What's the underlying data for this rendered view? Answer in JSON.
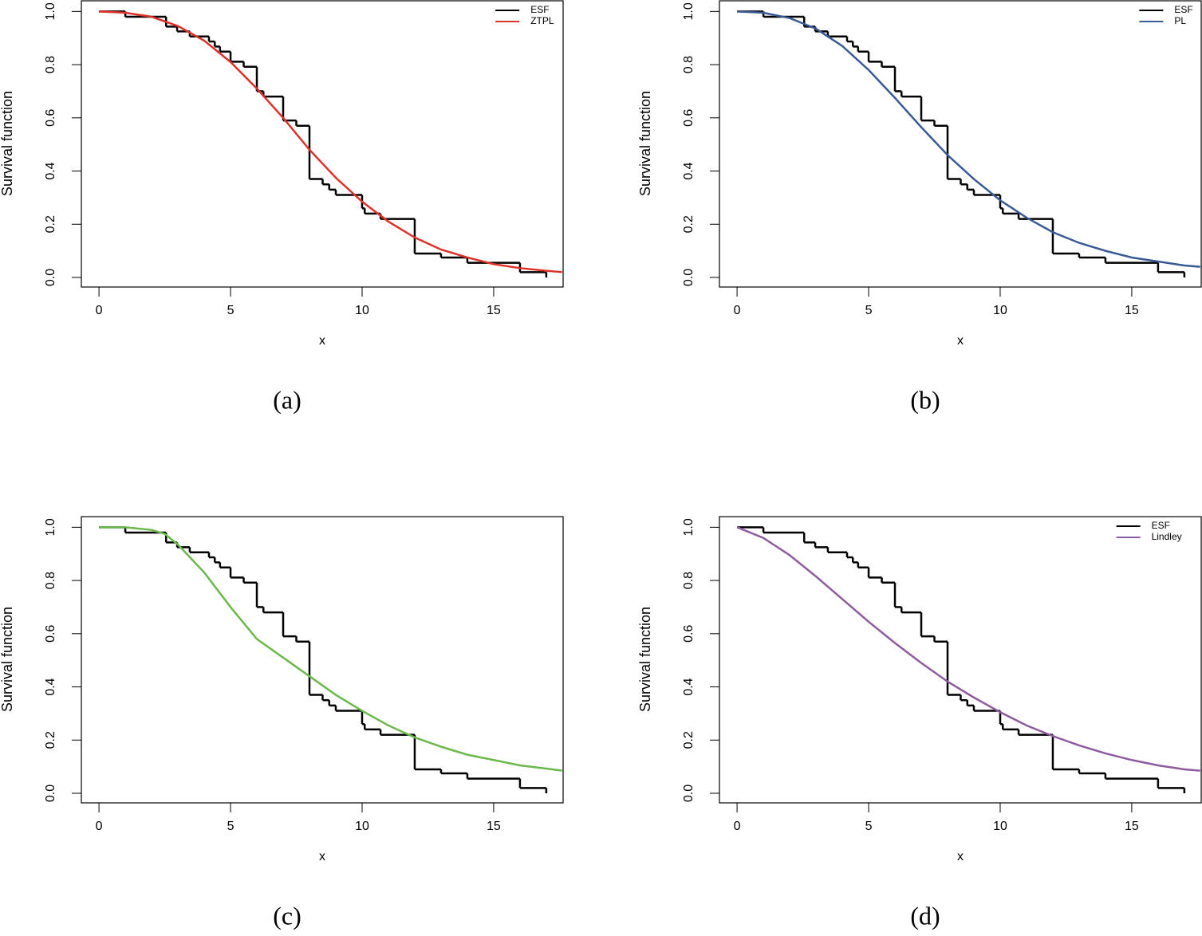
{
  "chart_data": [
    {
      "type": "line",
      "caption": "(a)",
      "xlabel": "x",
      "ylabel": "Survival function",
      "xlim": [
        -0.67,
        17.64
      ],
      "ylim": [
        -0.036,
        1.04
      ],
      "xticks": [
        0,
        5,
        10,
        15
      ],
      "yticks": [
        {
          "value": 0,
          "label": "0.0"
        },
        0.2,
        0.4,
        0.6,
        0.8,
        {
          "value": 1,
          "label": "1.0"
        }
      ],
      "legend": "top right",
      "series": [
        {
          "name": "ESF",
          "color": "#000000",
          "drawstyle": "steps-post",
          "x": [
            0,
            1,
            2.55,
            2.97,
            3.45,
            4.18,
            4.4,
            4.6,
            5,
            5.5,
            6,
            6.25,
            7,
            7.5,
            8,
            8.5,
            8.75,
            9,
            10,
            10.1,
            10.7,
            12,
            13,
            14,
            16,
            17
          ],
          "values": [
            1.0,
            0.98,
            0.943,
            0.925,
            0.906,
            0.887,
            0.868,
            0.849,
            0.811,
            0.792,
            0.7,
            0.68,
            0.59,
            0.57,
            0.37,
            0.35,
            0.33,
            0.31,
            0.26,
            0.24,
            0.22,
            0.09,
            0.075,
            0.055,
            0.02,
            0.0
          ]
        },
        {
          "name": "ZTPL",
          "color": "#e0302a",
          "x": [
            0,
            1,
            2,
            3,
            4,
            5,
            6,
            7,
            8,
            9,
            10,
            11,
            12,
            13,
            14,
            15,
            16,
            17,
            17.6
          ],
          "values": [
            1.0,
            0.995,
            0.98,
            0.945,
            0.89,
            0.81,
            0.71,
            0.6,
            0.48,
            0.375,
            0.285,
            0.21,
            0.15,
            0.105,
            0.075,
            0.05,
            0.035,
            0.025,
            0.02
          ]
        }
      ]
    },
    {
      "type": "line",
      "caption": "(b)",
      "xlabel": "x",
      "ylabel": "Survival function",
      "xlim": [
        -0.67,
        17.64
      ],
      "ylim": [
        -0.036,
        1.04
      ],
      "xticks": [
        0,
        5,
        10,
        15
      ],
      "yticks": [
        {
          "value": 0,
          "label": "0.0"
        },
        0.2,
        0.4,
        0.6,
        0.8,
        {
          "value": 1,
          "label": "1.0"
        }
      ],
      "legend": "top right",
      "series": [
        {
          "name": "ESF",
          "color": "#000000",
          "drawstyle": "steps-post",
          "x": [
            0,
            1,
            2.55,
            2.97,
            3.45,
            4.18,
            4.4,
            4.6,
            5,
            5.5,
            6,
            6.25,
            7,
            7.5,
            8,
            8.5,
            8.75,
            9,
            10,
            10.1,
            10.7,
            12,
            13,
            14,
            16,
            17
          ],
          "values": [
            1.0,
            0.98,
            0.943,
            0.925,
            0.906,
            0.887,
            0.868,
            0.849,
            0.811,
            0.792,
            0.7,
            0.68,
            0.59,
            0.57,
            0.37,
            0.35,
            0.33,
            0.31,
            0.26,
            0.24,
            0.22,
            0.09,
            0.075,
            0.055,
            0.02,
            0.0
          ]
        },
        {
          "name": "PL",
          "color": "#3a5a95",
          "x": [
            0,
            1,
            2,
            3,
            4,
            5,
            6,
            7,
            8,
            9,
            10,
            11,
            12,
            13,
            14,
            15,
            16,
            17,
            17.6
          ],
          "values": [
            1.0,
            0.995,
            0.975,
            0.935,
            0.87,
            0.78,
            0.675,
            0.565,
            0.46,
            0.37,
            0.29,
            0.225,
            0.17,
            0.13,
            0.1,
            0.075,
            0.06,
            0.045,
            0.04
          ]
        }
      ]
    },
    {
      "type": "line",
      "caption": "(c)",
      "xlabel": "x",
      "ylabel": "Survival function",
      "xlim": [
        -0.67,
        17.64
      ],
      "ylim": [
        -0.036,
        1.04
      ],
      "xticks": [
        0,
        5,
        10,
        15
      ],
      "yticks": [
        {
          "value": 0,
          "label": "0.0"
        },
        0.2,
        0.4,
        0.6,
        0.8,
        {
          "value": 1,
          "label": "1.0"
        }
      ],
      "legend": false,
      "series": [
        {
          "color": "#000000",
          "drawstyle": "steps-post",
          "x": [
            0,
            1,
            2.55,
            2.97,
            3.45,
            4.18,
            4.4,
            4.6,
            5,
            5.5,
            6,
            6.25,
            7,
            7.5,
            8,
            8.5,
            8.75,
            9,
            10,
            10.1,
            10.7,
            12,
            13,
            14,
            16,
            17
          ],
          "values": [
            1.0,
            0.98,
            0.943,
            0.925,
            0.906,
            0.887,
            0.868,
            0.849,
            0.811,
            0.792,
            0.7,
            0.68,
            0.59,
            0.57,
            0.37,
            0.35,
            0.33,
            0.31,
            0.26,
            0.24,
            0.22,
            0.09,
            0.075,
            0.055,
            0.02,
            0.0
          ]
        },
        {
          "color": "#6ab94a",
          "x": [
            0,
            1,
            2,
            2.5,
            3,
            4,
            5,
            6,
            7,
            8,
            9,
            10,
            11,
            12,
            13,
            14,
            15,
            16,
            17,
            17.6
          ],
          "values": [
            1.0,
            1.0,
            0.99,
            0.975,
            0.935,
            0.83,
            0.7,
            0.58,
            0.51,
            0.44,
            0.37,
            0.31,
            0.255,
            0.21,
            0.175,
            0.145,
            0.125,
            0.105,
            0.093,
            0.085
          ]
        }
      ]
    },
    {
      "type": "line",
      "caption": "(d)",
      "xlabel": "x",
      "ylabel": "Survival function",
      "xlim": [
        -0.67,
        17.64
      ],
      "ylim": [
        -0.036,
        1.04
      ],
      "xticks": [
        0,
        5,
        10,
        15
      ],
      "yticks": [
        {
          "value": 0,
          "label": "0.0"
        },
        0.2,
        0.4,
        0.6,
        0.8,
        {
          "value": 1,
          "label": "1.0"
        }
      ],
      "legend": "top right",
      "series": [
        {
          "name": "ESF",
          "color": "#000000",
          "drawstyle": "steps-post",
          "x": [
            0,
            1,
            2.55,
            2.97,
            3.45,
            4.18,
            4.4,
            4.6,
            5,
            5.5,
            6,
            6.25,
            7,
            7.5,
            8,
            8.5,
            8.75,
            9,
            10,
            10.1,
            10.7,
            12,
            13,
            14,
            16,
            17
          ],
          "values": [
            1.0,
            0.98,
            0.943,
            0.925,
            0.906,
            0.887,
            0.868,
            0.849,
            0.811,
            0.792,
            0.7,
            0.68,
            0.59,
            0.57,
            0.37,
            0.35,
            0.33,
            0.31,
            0.26,
            0.24,
            0.22,
            0.09,
            0.075,
            0.055,
            0.02,
            0.0
          ]
        },
        {
          "name": "Lindley",
          "color": "#8e5ba0",
          "x": [
            0,
            1,
            2,
            3,
            4,
            5,
            6,
            7,
            8,
            9,
            10,
            11,
            12,
            13,
            14,
            15,
            16,
            17,
            17.6
          ],
          "values": [
            1.0,
            0.96,
            0.895,
            0.815,
            0.73,
            0.645,
            0.565,
            0.49,
            0.42,
            0.36,
            0.305,
            0.255,
            0.215,
            0.18,
            0.15,
            0.125,
            0.105,
            0.09,
            0.085
          ]
        }
      ]
    }
  ]
}
